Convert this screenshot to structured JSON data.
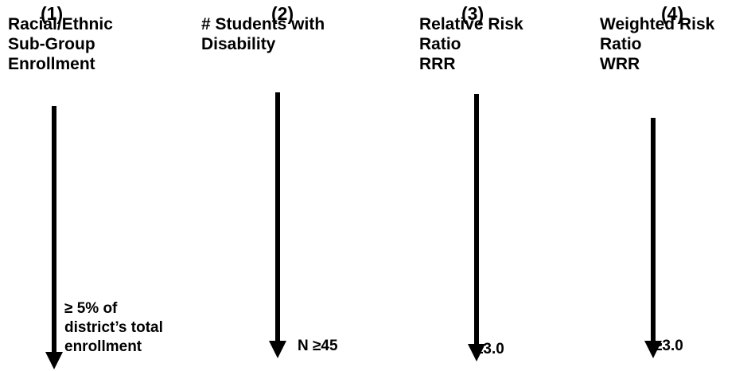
{
  "columns": [
    {
      "number": "(1)",
      "title_lines": [
        "Racial/Ethnic",
        "Sub-Group",
        "Enrollment"
      ],
      "threshold_lines": [
        "≥ 5% of",
        "district’s total",
        "enrollment"
      ]
    },
    {
      "number": "(2)",
      "title_lines": [
        "# Students with",
        "Disability"
      ],
      "threshold_lines": [
        "N ≥45"
      ]
    },
    {
      "number": "(3)",
      "title_lines": [
        "Relative Risk",
        "Ratio",
        "RRR"
      ],
      "threshold_lines": [
        "≥3.0"
      ]
    },
    {
      "number": "(4)",
      "title_lines": [
        "Weighted Risk",
        "Ratio",
        "WRR"
      ],
      "threshold_lines": [
        "≥3.0"
      ]
    }
  ]
}
